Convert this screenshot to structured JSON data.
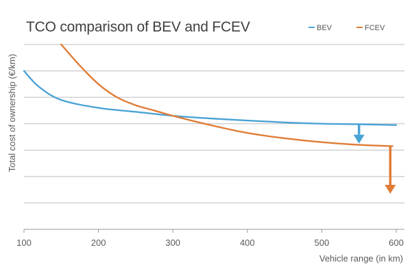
{
  "chart_data": {
    "type": "line",
    "title": "TCO comparison of BEV and FCEV",
    "xlabel": "Vehicle range (in km)",
    "ylabel": "Total cost of ownership (€/km)",
    "xlim": [
      100,
      600
    ],
    "x_ticks": [
      100,
      200,
      300,
      400,
      500,
      600
    ],
    "ylim": [
      0,
      7
    ],
    "grid": true,
    "legend": "top-right",
    "series": [
      {
        "name": "BEV",
        "color": "#4aa3d6",
        "x": [
          100,
          120,
          150,
          200,
          250,
          300,
          350,
          400,
          450,
          500,
          550,
          600
        ],
        "y": [
          6.0,
          5.4,
          4.9,
          4.6,
          4.45,
          4.3,
          4.2,
          4.12,
          4.05,
          4.0,
          3.98,
          3.95
        ]
      },
      {
        "name": "FCEV",
        "color": "#e07b35",
        "x": [
          150,
          175,
          200,
          225,
          250,
          275,
          300,
          350,
          400,
          450,
          500,
          550,
          595
        ],
        "y": [
          7.0,
          6.2,
          5.5,
          5.0,
          4.7,
          4.5,
          4.3,
          3.95,
          3.65,
          3.45,
          3.3,
          3.2,
          3.15
        ]
      }
    ],
    "annotations": [
      {
        "type": "arrow-down",
        "series": "BEV",
        "x": 550,
        "y_from": 3.98,
        "y_to": 3.3
      },
      {
        "type": "arrow-down",
        "series": "FCEV",
        "x": 592,
        "y_from": 3.15,
        "y_to": 1.4
      }
    ]
  }
}
